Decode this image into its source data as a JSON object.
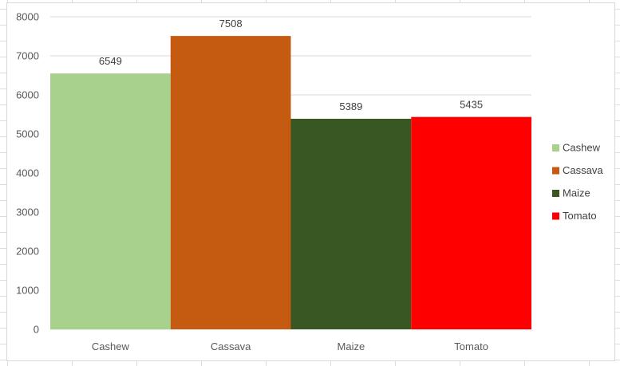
{
  "chart_data": {
    "type": "bar",
    "title": "",
    "xlabel": "",
    "ylabel": "",
    "categories": [
      "Cashew",
      "Cassava",
      "Maize",
      "Tomato"
    ],
    "values": [
      6549,
      7508,
      5389,
      5435
    ],
    "colors": [
      "#a9d18e",
      "#c55a11",
      "#385723",
      "#ff0000"
    ],
    "ylim": [
      0,
      8000
    ],
    "yticks": [
      "0",
      "1000",
      "2000",
      "3000",
      "4000",
      "5000",
      "6000",
      "7000",
      "8000"
    ],
    "data_labels": [
      "6549",
      "7508",
      "5389",
      "5435"
    ],
    "grid": true,
    "legend": {
      "position": "right",
      "entries": [
        "Cashew",
        "Cassava",
        "Maize",
        "Tomato"
      ]
    },
    "gridline_color": "#d9d9d9"
  }
}
